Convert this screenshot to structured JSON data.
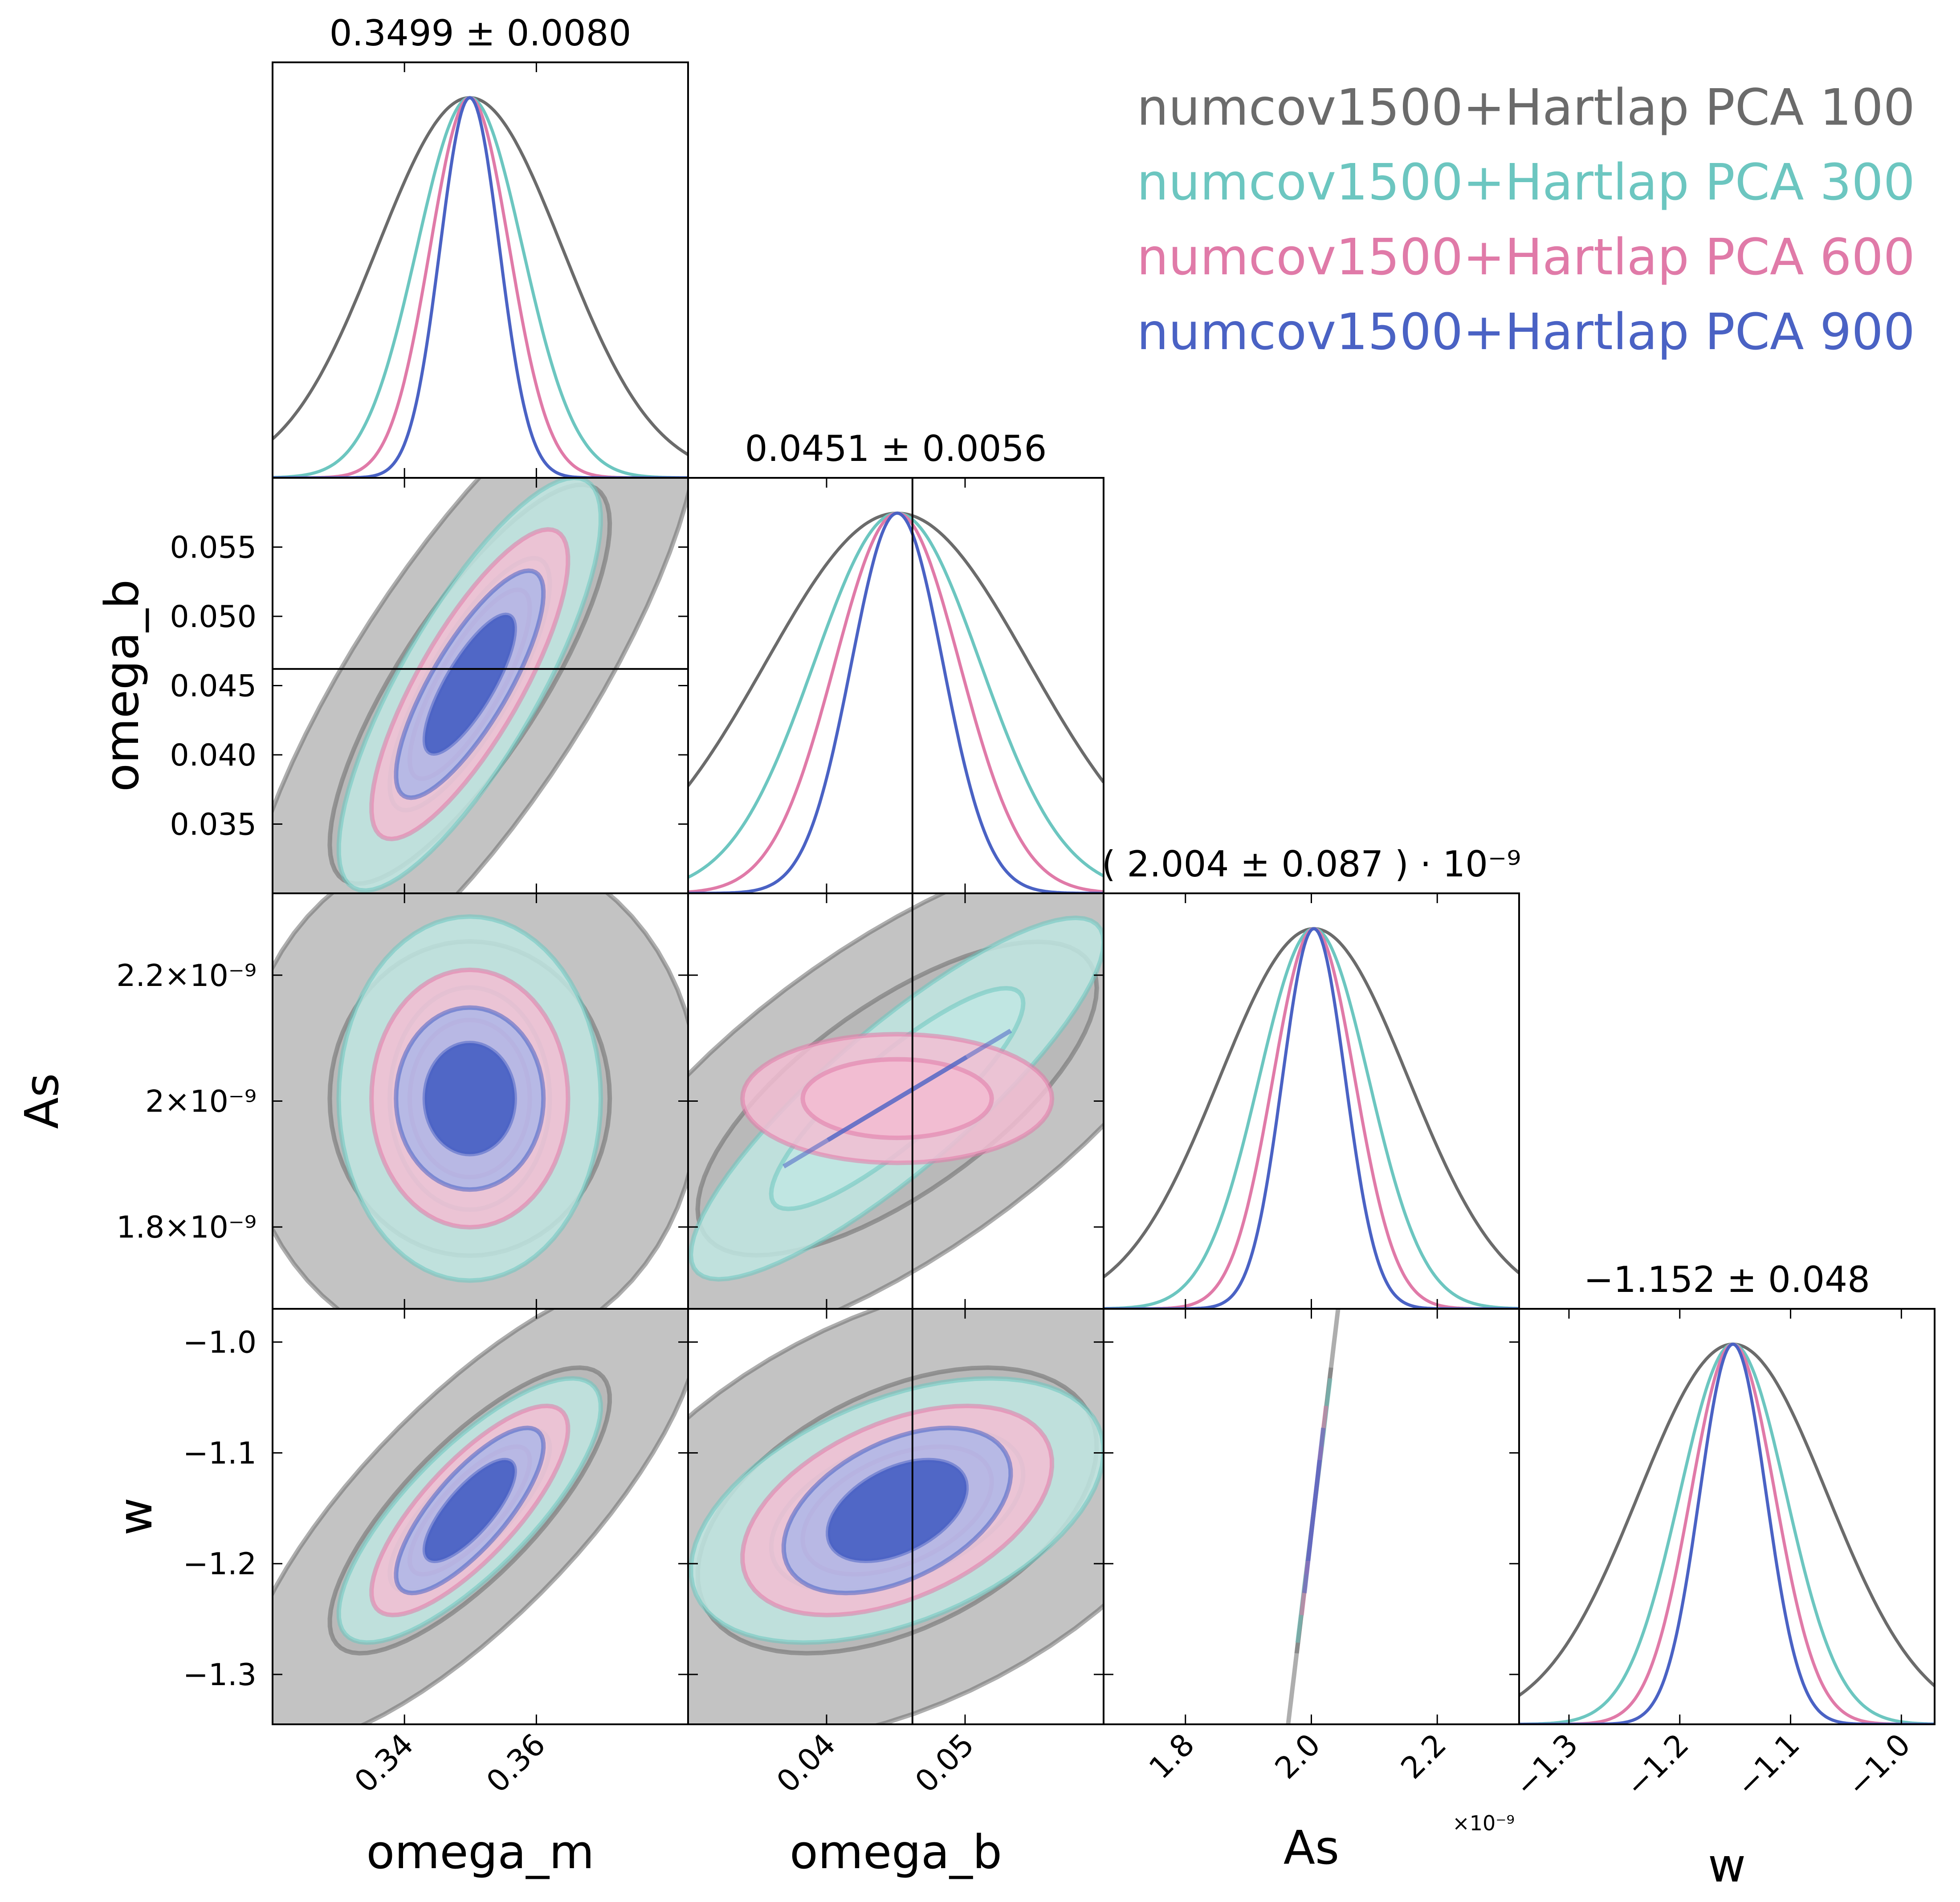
{
  "chart_data": {
    "type": "corner",
    "parameters": [
      {
        "key": "omega_m",
        "label": "omega_m",
        "range": [
          0.32,
          0.383
        ],
        "ticks": [
          0.34,
          0.36
        ],
        "tick_labels": [
          "0.34",
          "0.36"
        ],
        "reference": null
      },
      {
        "key": "omega_b",
        "label": "omega_b",
        "range": [
          0.03,
          0.06
        ],
        "ticks": [
          0.035,
          0.04,
          0.045,
          0.05,
          0.055
        ],
        "tick_labels": [
          "0.035",
          "0.040",
          "0.045",
          "0.050",
          "0.055"
        ],
        "x_ticks": [
          0.04,
          0.05
        ],
        "x_tick_labels": [
          "0.04",
          "0.05"
        ],
        "reference": 0.0462
      },
      {
        "key": "As",
        "label": "As",
        "range": [
          1.67e-09,
          2.33e-09
        ],
        "ticks": [
          1.8e-09,
          2e-09,
          2.2e-09
        ],
        "tick_labels": [
          "1.8×10⁻⁹",
          "2×10⁻⁹",
          "2.2×10⁻⁹"
        ],
        "x_tick_labels": [
          "1.8",
          "2.0",
          "2.2"
        ],
        "x_offset_label": "×10⁻⁹",
        "reference": null
      },
      {
        "key": "w",
        "label": "w",
        "range": [
          -1.345,
          -0.97
        ],
        "ticks": [
          -1.3,
          -1.2,
          -1.1,
          -1.0
        ],
        "tick_labels": [
          "−1.3",
          "−1.2",
          "−1.1",
          "−1.0"
        ],
        "reference": null
      }
    ],
    "titles": [
      "0.3499 ± 0.0080",
      "0.0451 ± 0.0056",
      "( 2.004 ± 0.087 ) · 10⁻⁹",
      "−1.152 ± 0.048"
    ],
    "marginal_mean": [
      0.3499,
      0.0451,
      2.004e-09,
      -1.152
    ],
    "series": [
      {
        "name": "numcov1500+Hartlap PCA 100",
        "color": "#6b6b6b",
        "fill": "#b8b8b8",
        "sigma": [
          0.014,
          0.0095,
          1.5e-10,
          0.085
        ],
        "corr": [
          [
            1,
            0.8,
            0.28,
            0.78
          ],
          [
            0.8,
            1,
            0.78,
            0.45
          ],
          [
            0.28,
            0.78,
            1,
            0.12
          ],
          [
            0.78,
            0.45,
            0.12,
            1
          ]
        ]
      },
      {
        "name": "numcov1500+Hartlap PCA 300",
        "color": "#6cc6c0",
        "fill": "#c0e6e2",
        "sigma": [
          0.008,
          0.006,
          8.7e-11,
          0.048
        ],
        "corr": [
          [
            1,
            0.8,
            0.28,
            0.78
          ],
          [
            0.8,
            1,
            0.78,
            0.45
          ],
          [
            0.28,
            0.78,
            1,
            0.12
          ],
          [
            0.78,
            0.45,
            0.12,
            1
          ]
        ]
      },
      {
        "name": "numcov1500+Hartlap PCA 600",
        "color": "#e07aa8",
        "fill": "#f2bdd2",
        "sigma": [
          0.006,
          0.0045,
          6.5e-11,
          0.038
        ],
        "corr": [
          [
            1,
            0.8,
            0.28,
            0.78
          ],
          [
            0.8,
            1,
            0.78,
            0.45
          ],
          [
            0.28,
            0.78,
            1,
            0.12
          ],
          [
            0.78,
            0.45,
            0.12,
            1
          ]
        ]
      },
      {
        "name": "numcov1500+Hartlap PCA 900",
        "color": "#4a62c4",
        "fill": "#aeb7e8",
        "sigma": [
          0.0045,
          0.0033,
          5e-11,
          0.03
        ],
        "corr": [
          [
            1,
            0.8,
            0.28,
            0.78
          ],
          [
            0.8,
            1,
            0.78,
            0.45
          ],
          [
            0.28,
            0.78,
            1,
            0.12
          ],
          [
            0.78,
            0.45,
            0.12,
            1
          ]
        ]
      }
    ],
    "contour_levels": [
      "68%",
      "95%"
    ],
    "legend": {
      "position": "top-right"
    },
    "grid": false
  }
}
